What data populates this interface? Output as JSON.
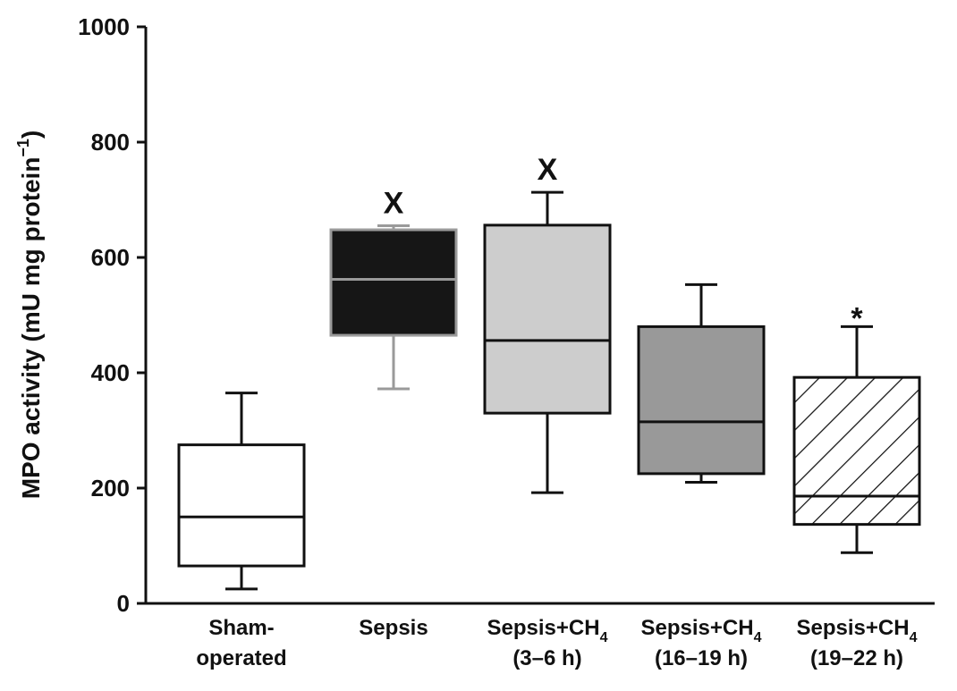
{
  "chart_data": {
    "type": "boxplot",
    "title": "",
    "xlabel": "",
    "ylabel": "MPO activity (mU mg protein",
    "ylabel_superscript": "−1",
    "ylabel_close": ")",
    "ylim": [
      0,
      1000
    ],
    "yticks": [
      0,
      200,
      400,
      600,
      800,
      1000
    ],
    "ytick_labels": [
      "0",
      "200",
      "400",
      "600",
      "800",
      "1000"
    ],
    "groups": [
      {
        "name": "sham-operated",
        "label_lines": [
          "Sham-",
          "operated"
        ],
        "whisker_low": 25,
        "q1": 65,
        "median": 150,
        "q3": 275,
        "whisker_high": 365,
        "fill": "#ffffff",
        "pattern": "none",
        "median_color": "#111111",
        "marker": ""
      },
      {
        "name": "sepsis",
        "label_lines": [
          "Sepsis"
        ],
        "whisker_low": 372,
        "q1": 465,
        "median": 562,
        "q3": 648,
        "whisker_high": 655,
        "fill": "#161616",
        "pattern": "none",
        "median_color": "#9a9a9a",
        "marker": "X"
      },
      {
        "name": "sepsis-ch4-3-6h",
        "label_lines": [
          "Sepsis+CH",
          "(3–6 h)"
        ],
        "subscript": "4",
        "whisker_low": 192,
        "q1": 330,
        "median": 456,
        "q3": 656,
        "whisker_high": 713,
        "fill": "#cdcdcd",
        "pattern": "none",
        "median_color": "#111111",
        "marker": "X"
      },
      {
        "name": "sepsis-ch4-16-19h",
        "label_lines": [
          "Sepsis+CH",
          "(16–19 h)"
        ],
        "subscript": "4",
        "whisker_low": 210,
        "q1": 225,
        "median": 315,
        "q3": 480,
        "whisker_high": 553,
        "fill": "#999999",
        "pattern": "none",
        "median_color": "#111111",
        "marker": ""
      },
      {
        "name": "sepsis-ch4-19-22h",
        "label_lines": [
          "Sepsis+CH",
          "(19–22 h)"
        ],
        "subscript": "4",
        "whisker_low": 88,
        "q1": 137,
        "median": 186,
        "q3": 392,
        "whisker_high": 480,
        "fill": "#ffffff",
        "pattern": "hatch",
        "median_color": "#111111",
        "marker": "*"
      }
    ]
  }
}
